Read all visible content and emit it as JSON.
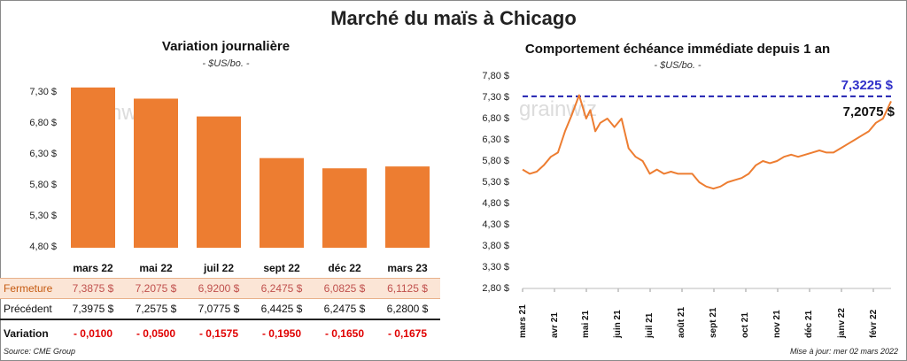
{
  "title": "Marché du maïs à Chicago",
  "left_chart": {
    "title": "Variation  journalière",
    "subtitle": "- $US/bo. -",
    "watermark": "grainwiz",
    "y_ticks": [
      "7,30 $",
      "6,80 $",
      "6,30 $",
      "5,80 $",
      "5,30 $",
      "4,80 $"
    ],
    "bar_color": "#ed7d31"
  },
  "table": {
    "labels": {
      "fermeture": "Fermeture",
      "precedent": "Précédent",
      "variation": "Variation"
    },
    "fermeture": [
      "7,3875  $",
      "7,2075  $",
      "6,9200  $",
      "6,2475  $",
      "6,0825  $",
      "6,1125  $"
    ],
    "precedent": [
      "7,3975  $",
      "7,2575  $",
      "7,0775  $",
      "6,4425  $",
      "6,2475  $",
      "6,2800  $"
    ],
    "variation": [
      "- 0,0100",
      "- 0,0500",
      "- 0,1575",
      "- 0,1950",
      "- 0,1650",
      "- 0,1675"
    ]
  },
  "right_chart": {
    "title": "Comportement  échéance immédiate depuis 1 an",
    "subtitle": "- $US/bo. -",
    "watermark": "grainwiz",
    "y_ticks": [
      "7,80 $",
      "7,30 $",
      "6,80 $",
      "6,30 $",
      "5,80 $",
      "5,30 $",
      "4,80 $",
      "4,30 $",
      "3,80 $",
      "3,30 $",
      "2,80 $"
    ],
    "x_ticks": [
      "mars 21",
      "avr 21",
      "mai 21",
      "juin 21",
      "juil 21",
      "août 21",
      "sept 21",
      "oct 21",
      "nov 21",
      "déc 21",
      "janv 22",
      "févr 22"
    ],
    "high_label": "7,3225 $",
    "last_label": "7,2075 $",
    "line_color": "#ed7d31",
    "dash_color": "#2020b0"
  },
  "footer": {
    "source": "Source: CME Group",
    "update": "Mise à jour: mer 02 mars 2022"
  },
  "chart_data": [
    {
      "type": "bar",
      "title": "Variation  journalière",
      "categories": [
        "mars 22",
        "mai 22",
        "juil 22",
        "sept 22",
        "déc 22",
        "mars 23"
      ],
      "values": [
        7.3875,
        7.2075,
        6.92,
        6.2475,
        6.0825,
        6.1125
      ],
      "ylim": [
        4.8,
        7.55
      ]
    },
    {
      "type": "line",
      "title": "Comportement  échéance immédiate depuis 1 an",
      "x": [
        "2021-03-01",
        "2021-03-08",
        "2021-03-15",
        "2021-03-22",
        "2021-03-29",
        "2021-04-05",
        "2021-04-12",
        "2021-04-19",
        "2021-04-26",
        "2021-05-03",
        "2021-05-07",
        "2021-05-12",
        "2021-05-17",
        "2021-05-24",
        "2021-05-31",
        "2021-06-07",
        "2021-06-14",
        "2021-06-21",
        "2021-06-28",
        "2021-07-05",
        "2021-07-12",
        "2021-07-19",
        "2021-07-26",
        "2021-08-02",
        "2021-08-09",
        "2021-08-16",
        "2021-08-23",
        "2021-08-30",
        "2021-09-06",
        "2021-09-13",
        "2021-09-20",
        "2021-09-27",
        "2021-10-04",
        "2021-10-11",
        "2021-10-18",
        "2021-10-25",
        "2021-11-01",
        "2021-11-08",
        "2021-11-15",
        "2021-11-22",
        "2021-11-29",
        "2021-12-06",
        "2021-12-13",
        "2021-12-20",
        "2021-12-27",
        "2022-01-03",
        "2022-01-10",
        "2022-01-17",
        "2022-01-24",
        "2022-01-31",
        "2022-02-07",
        "2022-02-14",
        "2022-02-21",
        "2022-03-01"
      ],
      "values": [
        5.6,
        5.5,
        5.55,
        5.7,
        5.9,
        6.0,
        6.5,
        6.9,
        7.35,
        6.8,
        7.0,
        6.5,
        6.7,
        6.8,
        6.6,
        6.8,
        6.1,
        5.9,
        5.8,
        5.5,
        5.6,
        5.5,
        5.55,
        5.5,
        5.5,
        5.5,
        5.3,
        5.2,
        5.15,
        5.2,
        5.3,
        5.35,
        5.4,
        5.5,
        5.7,
        5.8,
        5.75,
        5.8,
        5.9,
        5.95,
        5.9,
        5.95,
        6.0,
        6.05,
        6.0,
        6.0,
        6.1,
        6.2,
        6.3,
        6.4,
        6.5,
        6.7,
        6.8,
        7.2075
      ],
      "ylim": [
        2.8,
        7.8
      ],
      "reference_line": 7.3225
    }
  ]
}
